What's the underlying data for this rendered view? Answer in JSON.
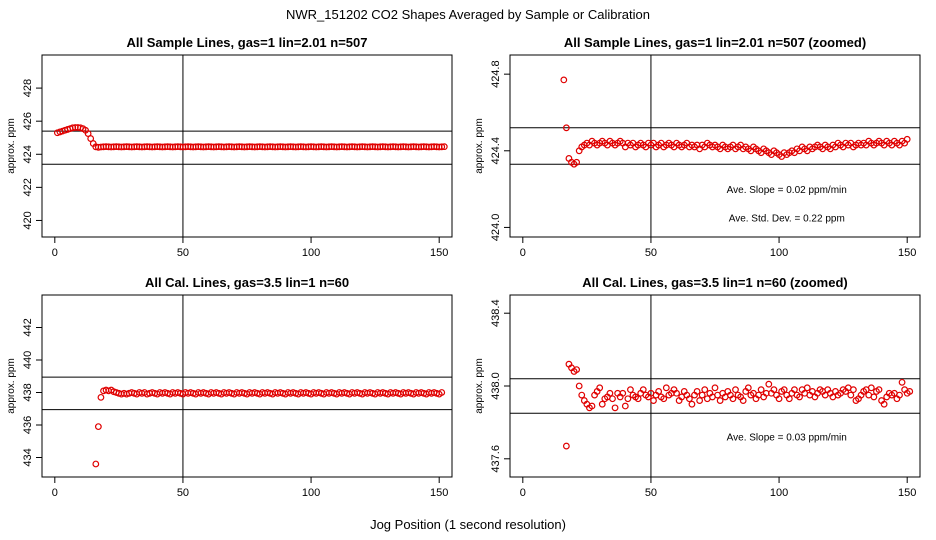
{
  "figure": {
    "title": "NWR_151202  CO2 Shapes Averaged by Sample or Calibration",
    "xlabel": "Jog Position (1 second resolution)",
    "point_color": "#e00000",
    "line_color": "#000000"
  },
  "chart_data": [
    {
      "type": "scatter",
      "title": "All Sample Lines, gas=1 lin=2.01 n=507",
      "ylabel": "approx. ppm",
      "xlim": [
        -5,
        155
      ],
      "ylim": [
        419,
        430
      ],
      "xticks": [
        0,
        50,
        100,
        150
      ],
      "yticks": [
        420,
        422,
        424,
        426,
        428
      ],
      "hlines": [
        425.4,
        423.4
      ],
      "vline": 50,
      "annotations": [],
      "x_start": 1,
      "y": [
        425.3,
        425.35,
        425.4,
        425.45,
        425.5,
        425.55,
        425.6,
        425.62,
        425.62,
        425.6,
        425.55,
        425.45,
        425.25,
        424.95,
        424.65,
        424.45,
        424.42,
        424.44,
        424.45,
        424.46,
        424.45,
        424.44,
        424.45,
        424.46,
        424.45,
        424.44,
        424.45,
        424.46,
        424.45,
        424.44,
        424.45,
        424.46,
        424.45,
        424.44,
        424.45,
        424.46,
        424.45,
        424.44,
        424.45,
        424.46,
        424.45,
        424.44,
        424.45,
        424.46,
        424.45,
        424.44,
        424.45,
        424.46,
        424.45,
        424.44,
        424.45,
        424.46,
        424.45,
        424.44,
        424.45,
        424.46,
        424.45,
        424.44,
        424.45,
        424.46,
        424.45,
        424.44,
        424.45,
        424.46,
        424.45,
        424.44,
        424.45,
        424.46,
        424.45,
        424.44,
        424.45,
        424.46,
        424.45,
        424.44,
        424.45,
        424.46,
        424.45,
        424.44,
        424.45,
        424.46,
        424.45,
        424.44,
        424.45,
        424.46,
        424.45,
        424.44,
        424.45,
        424.46,
        424.45,
        424.44,
        424.45,
        424.46,
        424.45,
        424.44,
        424.45,
        424.46,
        424.45,
        424.44,
        424.45,
        424.46,
        424.45,
        424.44,
        424.45,
        424.46,
        424.45,
        424.44,
        424.45,
        424.46,
        424.45,
        424.44,
        424.45,
        424.46,
        424.45,
        424.44,
        424.45,
        424.46,
        424.45,
        424.44,
        424.45,
        424.46,
        424.45,
        424.44,
        424.45,
        424.46,
        424.45,
        424.44,
        424.45,
        424.46,
        424.45,
        424.44,
        424.45,
        424.46,
        424.45,
        424.44,
        424.45,
        424.46,
        424.45,
        424.44,
        424.45,
        424.46,
        424.45,
        424.44,
        424.45,
        424.46,
        424.45,
        424.44,
        424.45,
        424.46,
        424.45,
        424.44,
        424.45,
        424.46
      ]
    },
    {
      "type": "scatter",
      "title": "All Sample Lines, gas=1 lin=2.01 n=507 (zoomed)",
      "ylabel": "approx. ppm",
      "xlim": [
        -5,
        155
      ],
      "ylim": [
        423.95,
        424.9
      ],
      "xticks": [
        0,
        50,
        100,
        150
      ],
      "yticks": [
        424.0,
        424.4,
        424.8
      ],
      "ytick_labels": [
        "424.0",
        "424.4",
        "424.8"
      ],
      "hlines": [
        424.52,
        424.33
      ],
      "vline": 50,
      "annotations": [
        {
          "text": "Ave. Slope =  0.02  ppm/min",
          "x": 103,
          "y": 424.18
        },
        {
          "text": "Ave. Std. Dev. =  0.22  ppm",
          "x": 103,
          "y": 424.03
        }
      ],
      "x_start": 16,
      "y": [
        424.77,
        424.52,
        424.36,
        424.34,
        424.33,
        424.34,
        424.4,
        424.42,
        424.43,
        424.44,
        424.43,
        424.45,
        424.44,
        424.43,
        424.44,
        424.45,
        424.44,
        424.43,
        424.45,
        424.44,
        424.43,
        424.44,
        424.45,
        424.44,
        424.42,
        424.44,
        424.43,
        424.44,
        424.42,
        424.43,
        424.44,
        424.43,
        424.42,
        424.44,
        424.43,
        424.44,
        424.42,
        424.43,
        424.44,
        424.42,
        424.43,
        424.44,
        424.43,
        424.42,
        424.44,
        424.43,
        424.42,
        424.43,
        424.44,
        424.42,
        424.43,
        424.42,
        424.43,
        424.41,
        424.43,
        424.42,
        424.44,
        424.43,
        424.42,
        424.43,
        424.42,
        424.41,
        424.43,
        424.42,
        424.41,
        424.42,
        424.43,
        424.41,
        424.42,
        424.43,
        424.41,
        424.42,
        424.41,
        424.4,
        424.42,
        424.41,
        424.4,
        424.39,
        424.41,
        424.4,
        424.39,
        424.38,
        424.4,
        424.39,
        424.38,
        424.37,
        424.39,
        424.38,
        424.39,
        424.4,
        424.39,
        424.41,
        424.4,
        424.42,
        424.41,
        424.4,
        424.42,
        424.41,
        424.42,
        424.43,
        424.42,
        424.41,
        424.43,
        424.42,
        424.41,
        424.43,
        424.42,
        424.44,
        424.43,
        424.42,
        424.44,
        424.43,
        424.44,
        424.42,
        424.43,
        424.44,
        424.43,
        424.44,
        424.43,
        424.45,
        424.44,
        424.43,
        424.44,
        424.45,
        424.44,
        424.43,
        424.45,
        424.44,
        424.43,
        424.45,
        424.44,
        424.43,
        424.45,
        424.44,
        424.46
      ]
    },
    {
      "type": "scatter",
      "title": "All Cal. Lines, gas=3.5 lin=1 n=60",
      "ylabel": "approx. ppm",
      "xlim": [
        -5,
        155
      ],
      "ylim": [
        432.8,
        444
      ],
      "xticks": [
        0,
        50,
        100,
        150
      ],
      "yticks": [
        434,
        436,
        438,
        440,
        442
      ],
      "hlines": [
        438.95,
        436.95
      ],
      "vline": 50,
      "annotations": [],
      "x_start": 16,
      "y": [
        433.6,
        435.9,
        437.7,
        438.1,
        438.15,
        438.1,
        438.15,
        438.05,
        438.0,
        437.95,
        437.9,
        437.95,
        437.9,
        437.95,
        438.0,
        437.95,
        437.9,
        438.0,
        437.95,
        438.0,
        437.9,
        437.95,
        438.0,
        437.95,
        437.9,
        438.0,
        437.95,
        438.0,
        437.95,
        437.9,
        438.0,
        437.95,
        438.0,
        437.95,
        437.9,
        438.0,
        437.95,
        438.0,
        437.95,
        437.9,
        438.0,
        437.95,
        438.0,
        437.95,
        437.9,
        438.0,
        437.95,
        438.0,
        437.95,
        437.9,
        438.0,
        437.95,
        438.0,
        437.95,
        437.9,
        438.0,
        437.95,
        438.0,
        437.95,
        437.9,
        438.0,
        437.95,
        438.0,
        437.95,
        437.9,
        438.0,
        437.95,
        438.0,
        437.95,
        437.9,
        438.0,
        437.95,
        438.0,
        437.95,
        437.9,
        438.0,
        437.95,
        438.0,
        437.95,
        437.9,
        438.0,
        437.95,
        438.0,
        437.95,
        437.9,
        438.0,
        437.95,
        438.0,
        437.95,
        437.9,
        438.0,
        437.95,
        438.0,
        437.95,
        437.9,
        438.0,
        437.95,
        438.0,
        437.95,
        437.9,
        438.0,
        437.95,
        438.0,
        437.95,
        437.9,
        438.0,
        437.95,
        438.0,
        437.95,
        437.9,
        438.0,
        437.95,
        438.0,
        437.95,
        437.9,
        438.0,
        437.95,
        438.0,
        437.95,
        437.9,
        438.0,
        437.95,
        438.0,
        437.95,
        437.9,
        438.0,
        437.95,
        438.0,
        437.95,
        437.9,
        438.0,
        437.95,
        438.0,
        437.95,
        437.9,
        438.0
      ]
    },
    {
      "type": "scatter",
      "title": "All Cal. Lines, gas=3.5 lin=1 n=60 (zoomed)",
      "ylabel": "approx. ppm",
      "xlim": [
        -5,
        155
      ],
      "ylim": [
        437.5,
        438.5
      ],
      "xticks": [
        0,
        50,
        100,
        150
      ],
      "yticks": [
        437.6,
        438.0,
        438.4
      ],
      "ytick_labels": [
        "437.6",
        "438.0",
        "438.4"
      ],
      "hlines": [
        438.04,
        437.85
      ],
      "vline": 50,
      "annotations": [
        {
          "text": "Ave. Slope =  0.03  ppm/min",
          "x": 103,
          "y": 437.7
        }
      ],
      "x_start": 17,
      "y": [
        437.67,
        438.12,
        438.1,
        438.08,
        438.09,
        438.0,
        437.95,
        437.92,
        437.9,
        437.88,
        437.89,
        437.95,
        437.97,
        437.99,
        437.9,
        437.93,
        437.94,
        437.96,
        437.93,
        437.88,
        437.96,
        437.94,
        437.96,
        437.89,
        437.93,
        437.98,
        437.95,
        437.94,
        437.93,
        437.96,
        437.98,
        437.95,
        437.94,
        437.96,
        437.92,
        437.95,
        437.97,
        437.94,
        437.93,
        437.99,
        437.95,
        437.96,
        437.98,
        437.96,
        437.92,
        437.94,
        437.97,
        437.95,
        437.93,
        437.9,
        437.95,
        437.97,
        437.92,
        437.95,
        437.98,
        437.93,
        437.96,
        437.94,
        437.99,
        437.95,
        437.92,
        437.96,
        437.94,
        437.97,
        437.95,
        437.93,
        437.98,
        437.95,
        437.94,
        437.92,
        437.97,
        437.99,
        437.95,
        437.96,
        437.93,
        437.95,
        437.98,
        437.94,
        437.96,
        438.01,
        437.96,
        437.98,
        437.95,
        437.93,
        437.97,
        437.98,
        437.95,
        437.93,
        437.96,
        437.98,
        437.95,
        437.94,
        437.98,
        437.96,
        437.99,
        437.95,
        437.97,
        437.94,
        437.96,
        437.98,
        437.97,
        437.95,
        437.98,
        437.96,
        437.94,
        437.97,
        437.95,
        437.96,
        437.98,
        437.97,
        437.99,
        437.95,
        437.98,
        437.92,
        437.93,
        437.95,
        437.97,
        437.98,
        437.95,
        437.99,
        437.94,
        437.97,
        437.98,
        437.92,
        437.9,
        437.94,
        437.96,
        437.95,
        437.96,
        437.93,
        437.95,
        438.02,
        437.98,
        437.96,
        437.97
      ]
    }
  ]
}
